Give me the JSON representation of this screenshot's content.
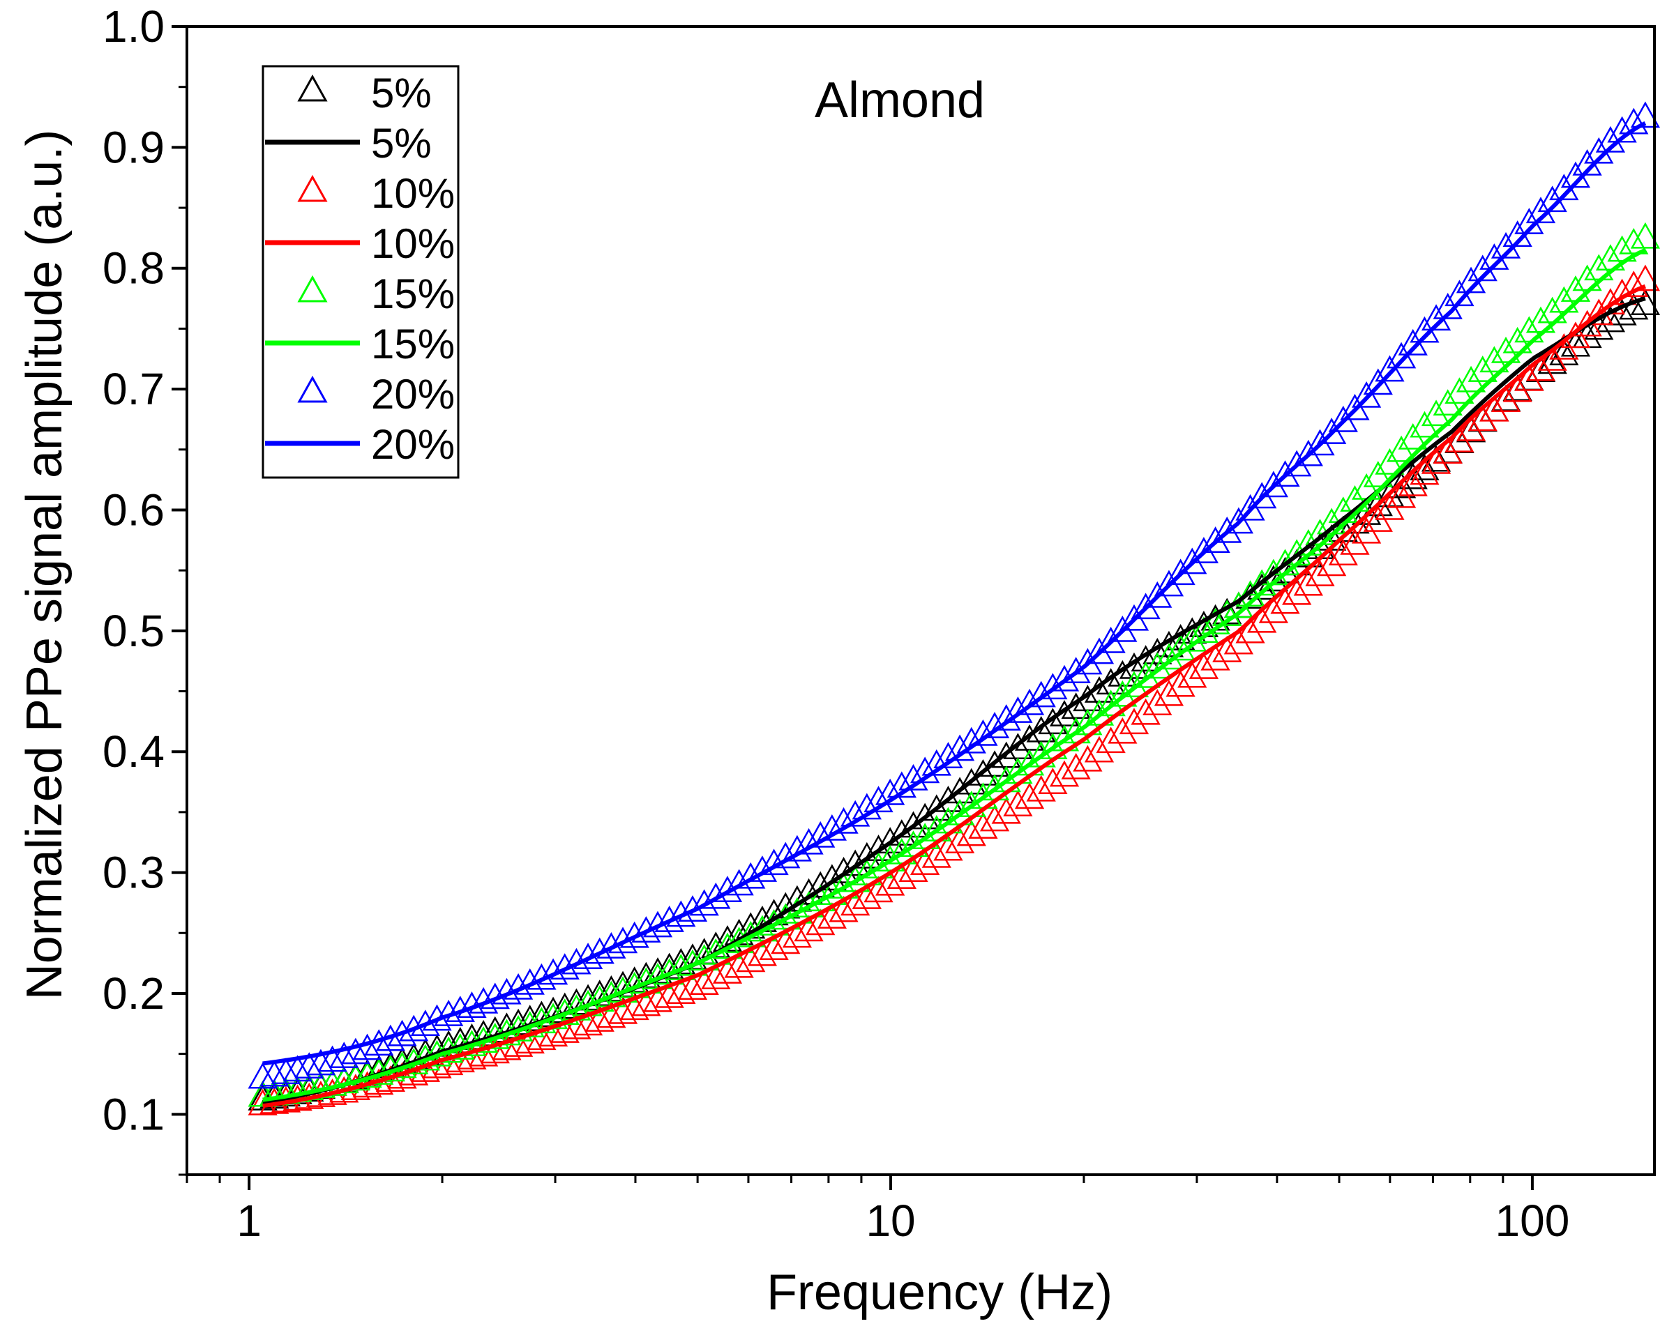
{
  "chart_data": {
    "type": "line",
    "title": "Almond",
    "xlabel": "Frequency (Hz)",
    "ylabel": "Normalized PPe signal amplitude (a.u.)",
    "xscale": "log",
    "xlim": [
      0.8,
      155
    ],
    "ylim": [
      0.05,
      1.0
    ],
    "x_ticks": [
      {
        "value": 1,
        "label": "1"
      },
      {
        "value": 10,
        "label": "10"
      },
      {
        "value": 100,
        "label": "100"
      }
    ],
    "y_ticks": [
      {
        "value": 0.1,
        "label": "0.1"
      },
      {
        "value": 0.2,
        "label": "0.2"
      },
      {
        "value": 0.3,
        "label": "0.3"
      },
      {
        "value": 0.4,
        "label": "0.4"
      },
      {
        "value": 0.5,
        "label": "0.5"
      },
      {
        "value": 0.6,
        "label": "0.6"
      },
      {
        "value": 0.7,
        "label": "0.7"
      },
      {
        "value": 0.8,
        "label": "0.8"
      },
      {
        "value": 0.9,
        "label": "0.9"
      },
      {
        "value": 1.0,
        "label": "1.0"
      }
    ],
    "grid": false,
    "legend_position": "top-left",
    "series": [
      {
        "name": "5%",
        "kind": "measured",
        "marker": "open-triangle",
        "color": "#000000",
        "x": [
          1.05,
          2,
          5,
          10,
          20,
          35,
          50,
          75,
          100,
          150
        ],
        "y": [
          0.112,
          0.155,
          0.23,
          0.325,
          0.44,
          0.52,
          0.58,
          0.65,
          0.71,
          0.77
        ]
      },
      {
        "name": "5%",
        "kind": "fit",
        "marker": "line",
        "color": "#000000",
        "x": [
          1.05,
          2,
          5,
          10,
          20,
          35,
          50,
          75,
          100,
          150
        ],
        "y": [
          0.11,
          0.152,
          0.225,
          0.325,
          0.445,
          0.525,
          0.59,
          0.665,
          0.725,
          0.775
        ]
      },
      {
        "name": "10%",
        "kind": "measured",
        "marker": "open-triangle",
        "color": "#ff0000",
        "x": [
          1.05,
          2,
          5,
          10,
          20,
          35,
          50,
          75,
          100,
          150
        ],
        "y": [
          0.108,
          0.14,
          0.205,
          0.29,
          0.39,
          0.49,
          0.56,
          0.65,
          0.71,
          0.79
        ]
      },
      {
        "name": "10%",
        "kind": "fit",
        "marker": "line",
        "color": "#ff0000",
        "x": [
          1.05,
          2,
          5,
          10,
          20,
          35,
          50,
          75,
          100,
          150
        ],
        "y": [
          0.107,
          0.145,
          0.215,
          0.3,
          0.41,
          0.5,
          0.575,
          0.66,
          0.72,
          0.785
        ]
      },
      {
        "name": "15%",
        "kind": "measured",
        "marker": "open-triangle",
        "color": "#00ff00",
        "x": [
          1.05,
          2,
          5,
          10,
          20,
          35,
          50,
          75,
          100,
          150
        ],
        "y": [
          0.115,
          0.15,
          0.225,
          0.31,
          0.42,
          0.52,
          0.595,
          0.69,
          0.75,
          0.825
        ]
      },
      {
        "name": "15%",
        "kind": "fit",
        "marker": "line",
        "color": "#00ff00",
        "x": [
          1.05,
          2,
          5,
          10,
          20,
          35,
          50,
          75,
          100,
          150
        ],
        "y": [
          0.112,
          0.15,
          0.225,
          0.31,
          0.42,
          0.515,
          0.585,
          0.675,
          0.74,
          0.815
        ]
      },
      {
        "name": "20%",
        "kind": "measured",
        "marker": "open-triangle",
        "color": "#0000ff",
        "x": [
          1.05,
          2,
          5,
          10,
          20,
          35,
          50,
          75,
          100,
          150
        ],
        "y": [
          0.13,
          0.18,
          0.27,
          0.365,
          0.47,
          0.59,
          0.67,
          0.77,
          0.84,
          0.925
        ]
      },
      {
        "name": "20%",
        "kind": "fit",
        "marker": "line",
        "color": "#0000ff",
        "x": [
          1.05,
          2,
          5,
          10,
          20,
          35,
          50,
          75,
          100,
          150
        ],
        "y": [
          0.142,
          0.18,
          0.27,
          0.36,
          0.47,
          0.59,
          0.67,
          0.765,
          0.835,
          0.92
        ]
      }
    ]
  }
}
